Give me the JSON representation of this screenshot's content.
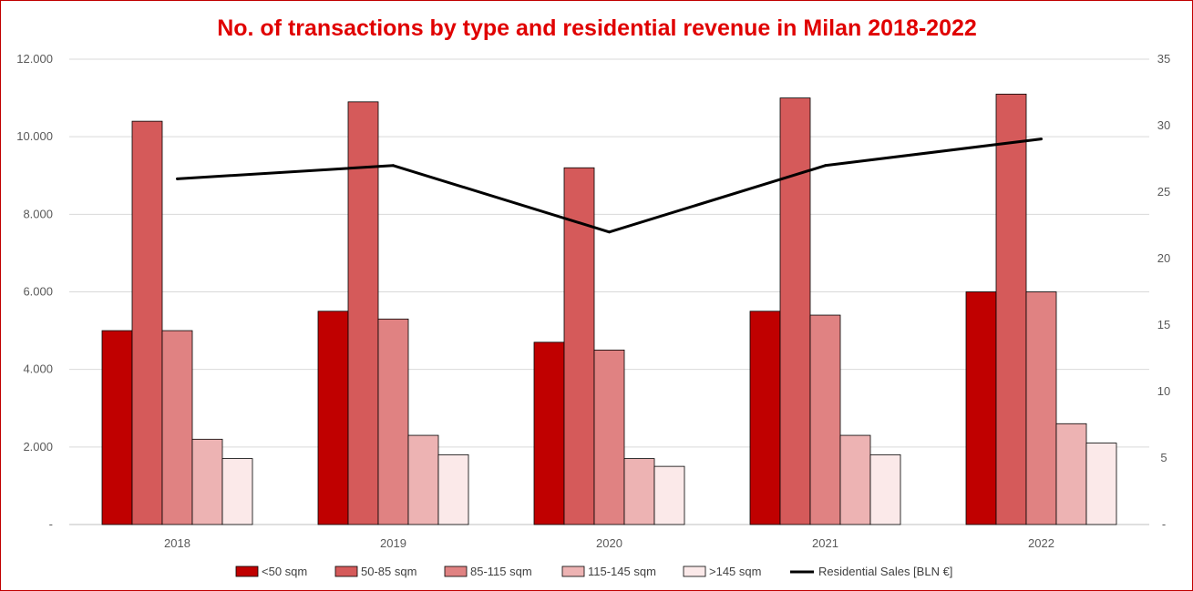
{
  "chart_data": {
    "type": "bar",
    "title": "No. of transactions by type and residential revenue in Milan 2018-2022",
    "categories": [
      "2018",
      "2019",
      "2020",
      "2021",
      "2022"
    ],
    "series": [
      {
        "name": "<50 sqm",
        "values": [
          5000,
          5500,
          4700,
          5500,
          6000
        ],
        "color": "#c00000"
      },
      {
        "name": "50-85 sqm",
        "values": [
          10400,
          10900,
          9200,
          11000,
          11100
        ],
        "color": "#d55a5a"
      },
      {
        "name": "85-115 sqm",
        "values": [
          5000,
          5300,
          4500,
          5400,
          6000
        ],
        "color": "#e08282"
      },
      {
        "name": "115-145 sqm",
        "values": [
          2200,
          2300,
          1700,
          2300,
          2600
        ],
        "color": "#edb3b3"
      },
      {
        "name": ">145 sqm",
        "values": [
          1700,
          1800,
          1500,
          1800,
          2100
        ],
        "color": "#fbe9e9"
      }
    ],
    "line_series": {
      "name": "Residential Sales [BLN €]",
      "values": [
        26,
        27,
        22,
        27,
        29
      ],
      "color": "#000000",
      "axis": "right"
    },
    "y_left": {
      "ylim": [
        0,
        12000
      ],
      "ticks": [
        "-",
        "2.000",
        "4.000",
        "6.000",
        "8.000",
        "10.000",
        "12.000"
      ]
    },
    "y_right": {
      "ylim": [
        0,
        35
      ],
      "ticks": [
        "-",
        "5",
        "10",
        "15",
        "20",
        "25",
        "30",
        "35"
      ]
    },
    "grid": true,
    "legend": "bottom"
  }
}
